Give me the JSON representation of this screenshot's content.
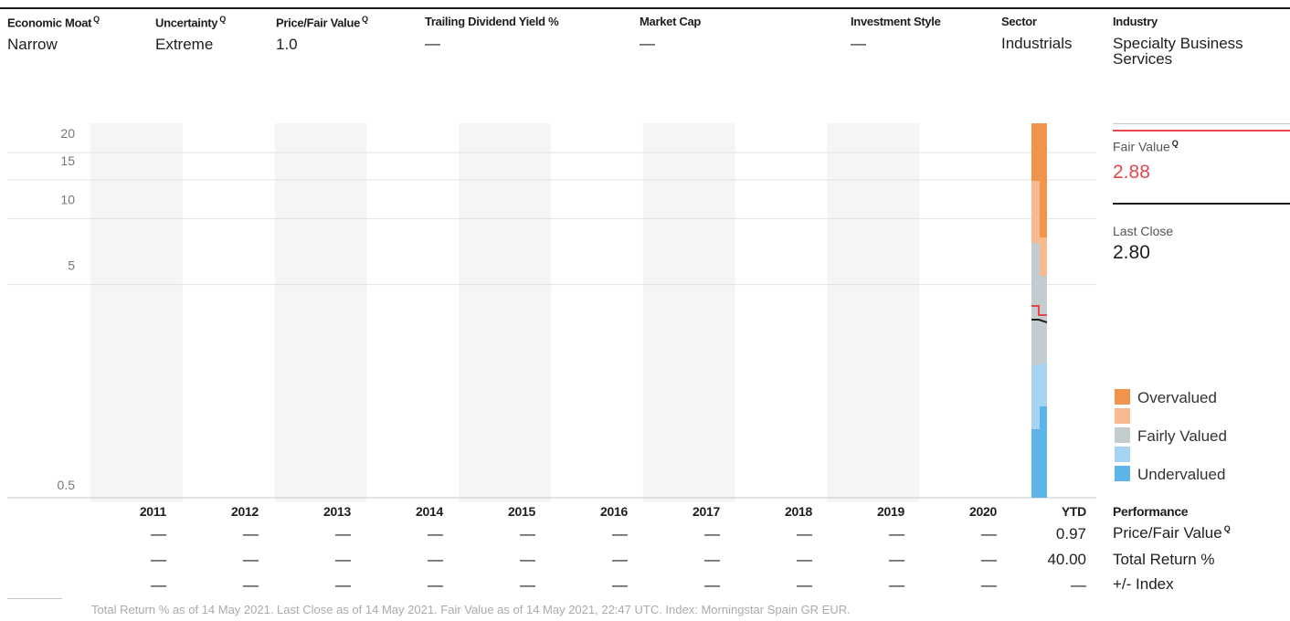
{
  "header": [
    {
      "label": "Economic Moat",
      "value": "Narrow",
      "info": true
    },
    {
      "label": "Uncertainty",
      "value": "Extreme",
      "info": true
    },
    {
      "label": "Price/Fair Value",
      "value": "1.0",
      "info": true
    },
    {
      "label": "Trailing Dividend Yield %",
      "value": "—",
      "info": false
    },
    {
      "label": "Market Cap",
      "value": "—",
      "info": false
    },
    {
      "label": "Investment Style",
      "value": "—",
      "info": false
    },
    {
      "label": "Sector",
      "value": "Industrials",
      "info": false
    },
    {
      "label": "Industry",
      "value": "Specialty Business",
      "value2": "Services",
      "info": false
    }
  ],
  "info_icon": "Q",
  "side": {
    "fair_value_label": "Fair Value",
    "fair_value": "2.88",
    "last_close_label": "Last Close",
    "last_close": "2.80"
  },
  "legend": [
    {
      "label": "Overvalued",
      "color": "#f0944c"
    },
    {
      "label": "",
      "color": "#f6b990"
    },
    {
      "label": "Fairly Valued",
      "color": "#c3cdcf"
    },
    {
      "label": "",
      "color": "#a6d3f1"
    },
    {
      "label": "Undervalued",
      "color": "#5db4e8"
    }
  ],
  "colors": {
    "fair_value": "#e8454d",
    "last_close": "#1e1e1e",
    "band": "#f5f5f5"
  },
  "chart_data": {
    "type": "line",
    "y_scale": "log",
    "y_ticks": [
      "20",
      "15",
      "10",
      "5",
      "0.5"
    ],
    "years": [
      "2011",
      "2012",
      "2013",
      "2014",
      "2015",
      "2016",
      "2017",
      "2018",
      "2019",
      "2020",
      "YTD"
    ],
    "series": [
      {
        "name": "Fair Value",
        "x": [
          "YTD",
          "YTD"
        ],
        "values": [
          2.88,
          2.88
        ]
      },
      {
        "name": "Last Close",
        "x": [
          "YTD",
          "YTD"
        ],
        "values": [
          2.8,
          2.8
        ]
      }
    ]
  },
  "performance": {
    "title": "Performance",
    "rows": [
      {
        "label": "Price/Fair Value",
        "info": true,
        "values": [
          "—",
          "—",
          "—",
          "—",
          "—",
          "—",
          "—",
          "—",
          "—",
          "—",
          "0.97"
        ]
      },
      {
        "label": "Total Return %",
        "info": false,
        "values": [
          "—",
          "—",
          "—",
          "—",
          "—",
          "—",
          "—",
          "—",
          "—",
          "—",
          "40.00"
        ]
      },
      {
        "label": "+/- Index",
        "info": false,
        "values": [
          "—",
          "—",
          "—",
          "—",
          "—",
          "—",
          "—",
          "—",
          "—",
          "—",
          "—"
        ]
      }
    ]
  },
  "footer": "Total Return % as of 14 May 2021. Last Close as of 14 May 2021. Fair Value as of 14 May 2021, 22:47 UTC. Index: Morningstar Spain GR EUR."
}
